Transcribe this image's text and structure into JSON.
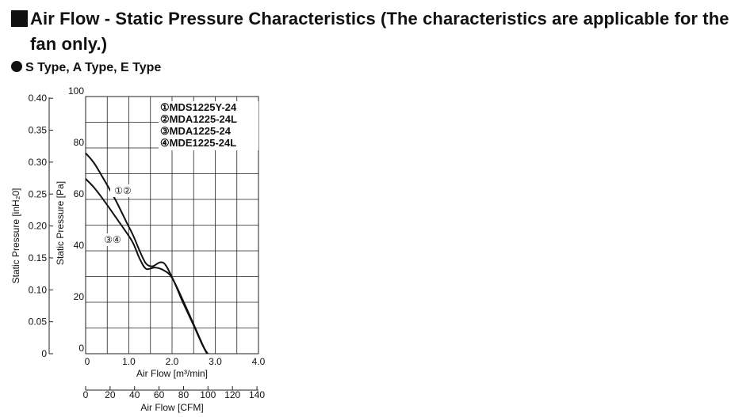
{
  "header": {
    "title": "Air Flow - Static Pressure Characteristics (The characteristics are applicable for the fan only.)",
    "subtitle": "S Type, A Type, E Type"
  },
  "chart_data": {
    "type": "line",
    "x_axis": {
      "label": "Air Flow [m³/min]",
      "range": [
        0,
        4.0
      ],
      "ticks": [
        "0",
        "1.0",
        "2.0",
        "3.0",
        "4.0"
      ],
      "tick_values": [
        0,
        1,
        2,
        3,
        4
      ]
    },
    "x2_axis": {
      "label": "Air Flow [CFM]",
      "range": [
        0,
        141.26
      ],
      "ticks": [
        "0",
        "20",
        "40",
        "60",
        "80",
        "100",
        "120",
        "140"
      ],
      "tick_values": [
        0,
        20,
        40,
        60,
        80,
        100,
        120,
        140
      ]
    },
    "y_axis": {
      "label": "Static Pressure [Pa]",
      "range": [
        0,
        100
      ],
      "ticks": [
        "0",
        "20",
        "40",
        "60",
        "80",
        "100"
      ],
      "tick_values": [
        0,
        20,
        40,
        60,
        80,
        100
      ]
    },
    "y2_axis": {
      "label": "Static Pressure [inH₂0]",
      "range": [
        0,
        0.4015
      ],
      "ticks": [
        "0",
        "0.05",
        "0.10",
        "0.15",
        "0.20",
        "0.25",
        "0.30",
        "0.35",
        "0.40"
      ],
      "tick_values": [
        0,
        0.05,
        0.1,
        0.15,
        0.2,
        0.25,
        0.3,
        0.35,
        0.4
      ]
    },
    "grid": true,
    "legend_position": "top-right",
    "legend": [
      "①MDS1225Y-24",
      "②MDA1225-24L",
      "③MDA1225-24",
      "④MDE1225-24L"
    ],
    "series": [
      {
        "name": "①②",
        "points": [
          [
            0,
            78
          ],
          [
            0.2,
            74
          ],
          [
            0.45,
            67
          ],
          [
            0.7,
            59.5
          ],
          [
            0.95,
            51
          ],
          [
            1.1,
            46
          ],
          [
            1.25,
            40
          ],
          [
            1.4,
            35
          ],
          [
            1.55,
            34
          ],
          [
            1.72,
            35.5
          ],
          [
            1.85,
            34.5
          ],
          [
            2.05,
            28
          ],
          [
            2.3,
            19
          ],
          [
            2.55,
            9.5
          ],
          [
            2.75,
            2
          ],
          [
            2.83,
            0
          ]
        ]
      },
      {
        "name": "③④",
        "points": [
          [
            0,
            68
          ],
          [
            0.2,
            64.5
          ],
          [
            0.45,
            59
          ],
          [
            0.7,
            53
          ],
          [
            0.95,
            47
          ],
          [
            1.1,
            43
          ],
          [
            1.25,
            37
          ],
          [
            1.4,
            33
          ],
          [
            1.6,
            33.5
          ],
          [
            1.8,
            32.5
          ],
          [
            2.0,
            29.5
          ],
          [
            2.25,
            20
          ],
          [
            2.5,
            11
          ],
          [
            2.7,
            3.5
          ],
          [
            2.81,
            0
          ]
        ]
      }
    ]
  }
}
